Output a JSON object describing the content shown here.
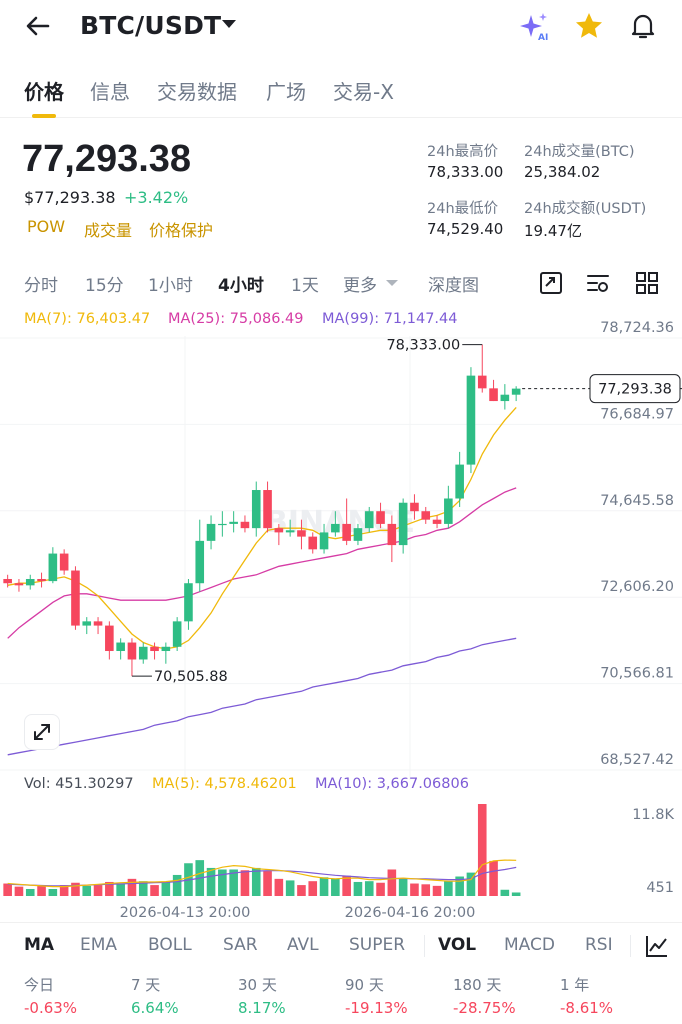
{
  "header": {
    "back_icon": "back-arrow-icon",
    "pair": "BTC/USDT",
    "icons": [
      "ai-sparkle-icon",
      "star-icon",
      "bell-icon"
    ]
  },
  "tabs": [
    "价格",
    "信息",
    "交易数据",
    "广场",
    "交易-X"
  ],
  "active_tab": "价格",
  "price": {
    "last": "77,293.38",
    "usd": "$77,293.38",
    "change": "+3.42%",
    "tags": [
      "POW",
      "成交量",
      "价格保护"
    ]
  },
  "stats": {
    "high_label": "24h最高价",
    "high": "78,333.00",
    "low_label": "24h最低价",
    "low": "74,529.40",
    "vol_btc_label": "24h成交量(BTC)",
    "vol_btc": "25,384.02",
    "vol_usdt_label": "24h成交额(USDT)",
    "vol_usdt": "19.47亿"
  },
  "timeframes": [
    "分时",
    "15分",
    "1小时",
    "4小时",
    "1天",
    "更多",
    "深度图"
  ],
  "active_timeframe": "4小时",
  "ma_legend": {
    "ma7": "MA(7): 76,403.47",
    "ma25": "MA(25): 75,086.49",
    "ma99": "MA(99): 71,147.44"
  },
  "vol_legend": {
    "vol": "Vol: 451.30297",
    "ma5": "MA(5): 4,578.46201",
    "ma10": "MA(10): 3,667.06806"
  },
  "colors": {
    "up": "#2ebd85",
    "down": "#f6465d",
    "ma7": "#f0b90b",
    "ma25": "#d63ca5",
    "ma99": "#7d5bd6",
    "accent": "#f0b90b"
  },
  "chart_data": {
    "type": "candlestick",
    "y_ticks": [
      "78,724.36",
      "76,684.97",
      "74,645.58",
      "72,606.20",
      "70,566.81",
      "68,527.42"
    ],
    "ylim": [
      68527.42,
      78724.36
    ],
    "x_ticks": [
      "2026-04-13 20:00",
      "2026-04-16 20:00"
    ],
    "high_marker": "78,333.00",
    "low_marker": "70,505.88",
    "last_price_label": "77,293.38",
    "watermark": "BINANCE",
    "vol_ticks": [
      "11.8K",
      "451"
    ],
    "candles": [
      [
        72800,
        72900,
        72600,
        72700
      ],
      [
        72700,
        72800,
        72500,
        72650
      ],
      [
        72650,
        72900,
        72550,
        72800
      ],
      [
        72800,
        72950,
        72600,
        72750
      ],
      [
        72750,
        73550,
        72700,
        73400
      ],
      [
        73400,
        73500,
        72900,
        73000
      ],
      [
        73000,
        73100,
        71600,
        71700
      ],
      [
        71700,
        71900,
        71500,
        71800
      ],
      [
        71800,
        71900,
        71500,
        71700
      ],
      [
        71700,
        71800,
        70900,
        71100
      ],
      [
        71100,
        71400,
        70900,
        71300
      ],
      [
        71300,
        71400,
        70505.88,
        70900
      ],
      [
        70900,
        71300,
        70800,
        71200
      ],
      [
        71200,
        71300,
        70900,
        71100
      ],
      [
        71100,
        71300,
        70800,
        71200
      ],
      [
        71200,
        71900,
        71100,
        71800
      ],
      [
        71800,
        72800,
        71600,
        72700
      ],
      [
        72700,
        74200,
        72500,
        73700
      ],
      [
        73700,
        74300,
        73500,
        74100
      ],
      [
        74100,
        74400,
        73800,
        74100
      ],
      [
        74100,
        74400,
        73900,
        74150
      ],
      [
        74150,
        74300,
        73900,
        74000
      ],
      [
        74000,
        75100,
        73800,
        74900
      ],
      [
        74900,
        75100,
        73900,
        74000
      ],
      [
        74000,
        74100,
        73600,
        73900
      ],
      [
        73900,
        74200,
        73800,
        73950
      ],
      [
        73950,
        74200,
        73500,
        73800
      ],
      [
        73800,
        73900,
        73400,
        73500
      ],
      [
        73500,
        74100,
        73400,
        73900
      ],
      [
        73900,
        74400,
        73800,
        74100
      ],
      [
        74100,
        74700,
        73600,
        73700
      ],
      [
        73700,
        74100,
        73600,
        74000
      ],
      [
        74000,
        74500,
        73900,
        74400
      ],
      [
        74400,
        74600,
        74000,
        74100
      ],
      [
        74100,
        74300,
        73200,
        73600
      ],
      [
        73600,
        74700,
        73400,
        74600
      ],
      [
        74600,
        74800,
        74200,
        74400
      ],
      [
        74400,
        74500,
        74100,
        74200
      ],
      [
        74200,
        74300,
        74000,
        74100
      ],
      [
        74100,
        75000,
        74000,
        74700
      ],
      [
        74700,
        75800,
        74500,
        75500
      ],
      [
        75500,
        77800,
        75300,
        77600
      ],
      [
        77600,
        78333,
        77200,
        77300
      ],
      [
        77300,
        77500,
        77000,
        77000
      ],
      [
        77000,
        77400,
        76800,
        77150
      ],
      [
        77150,
        77350,
        77000,
        77293.38
      ]
    ],
    "volumes": [
      1600,
      1200,
      900,
      1300,
      900,
      1400,
      1700,
      1300,
      1400,
      1800,
      1600,
      2200,
      1900,
      1400,
      1800,
      2700,
      4200,
      4600,
      3600,
      3400,
      3400,
      3300,
      3600,
      3200,
      2200,
      2000,
      1400,
      1900,
      2400,
      2200,
      2600,
      1800,
      1900,
      1700,
      3400,
      2200,
      1600,
      1500,
      1300,
      1900,
      2500,
      3000,
      11800,
      4500,
      800,
      451.30297
    ],
    "ma7": [
      72650,
      72700,
      72700,
      72750,
      72800,
      72850,
      72750,
      72600,
      72400,
      72100,
      71800,
      71500,
      71300,
      71200,
      71150,
      71200,
      71350,
      71650,
      72000,
      72450,
      72850,
      73250,
      73650,
      73950,
      74000,
      74000,
      74000,
      73950,
      73800,
      73750,
      73800,
      73850,
      73900,
      73950,
      73950,
      74050,
      74150,
      74250,
      74300,
      74400,
      74650,
      75150,
      75750,
      76200,
      76550,
      76850
    ],
    "ma25": [
      71400,
      71650,
      71850,
      72050,
      72250,
      72400,
      72450,
      72450,
      72400,
      72350,
      72300,
      72300,
      72300,
      72300,
      72300,
      72350,
      72400,
      72500,
      72600,
      72700,
      72800,
      72850,
      72900,
      73000,
      73100,
      73150,
      73200,
      73250,
      73300,
      73350,
      73400,
      73500,
      73550,
      73600,
      73650,
      73700,
      73800,
      73850,
      73950,
      74000,
      74150,
      74350,
      74550,
      74700,
      74850,
      74950
    ],
    "ma99": [
      68650,
      68700,
      68750,
      68800,
      68850,
      68900,
      68950,
      69000,
      69050,
      69100,
      69150,
      69200,
      69250,
      69350,
      69400,
      69450,
      69550,
      69600,
      69650,
      69750,
      69800,
      69850,
      69950,
      70000,
      70050,
      70100,
      70150,
      70250,
      70300,
      70350,
      70400,
      70450,
      70550,
      70600,
      70650,
      70750,
      70800,
      70850,
      70950,
      71000,
      71100,
      71150,
      71250,
      71300,
      71350,
      71400
    ],
    "vol_ma5": [
      1600,
      1500,
      1400,
      1300,
      1200,
      1200,
      1300,
      1400,
      1500,
      1600,
      1700,
      1750,
      1800,
      1800,
      1850,
      2000,
      2400,
      2900,
      3300,
      3700,
      3900,
      3800,
      3500,
      3400,
      3300,
      3100,
      2800,
      2500,
      2300,
      2200,
      2300,
      2300,
      2100,
      2100,
      2200,
      2300,
      2200,
      2100,
      2000,
      1900,
      1900,
      2100,
      4000,
      4500,
      4600,
      4578
    ],
    "vol_ma10": [
      1500,
      1450,
      1400,
      1350,
      1300,
      1300,
      1350,
      1400,
      1450,
      1500,
      1550,
      1600,
      1650,
      1700,
      1750,
      1850,
      2050,
      2300,
      2550,
      2750,
      2950,
      3100,
      3200,
      3250,
      3250,
      3200,
      3100,
      2950,
      2800,
      2650,
      2550,
      2450,
      2350,
      2300,
      2250,
      2250,
      2200,
      2200,
      2150,
      2100,
      2100,
      2200,
      2900,
      3200,
      3400,
      3667
    ]
  },
  "indicators": [
    "MA",
    "EMA",
    "BOLL",
    "SAR",
    "AVL",
    "SUPER",
    "VOL",
    "MACD",
    "RSI"
  ],
  "indicator_icon": "indicator-chart-icon",
  "performance": [
    {
      "label": "今日",
      "value": "-0.63%",
      "dir": "down"
    },
    {
      "label": "7 天",
      "value": "6.64%",
      "dir": "up"
    },
    {
      "label": "30 天",
      "value": "8.17%",
      "dir": "up"
    },
    {
      "label": "90 天",
      "value": "-19.13%",
      "dir": "down"
    },
    {
      "label": "180 天",
      "value": "-28.75%",
      "dir": "down"
    },
    {
      "label": "1 年",
      "value": "-8.61%",
      "dir": "down"
    }
  ]
}
